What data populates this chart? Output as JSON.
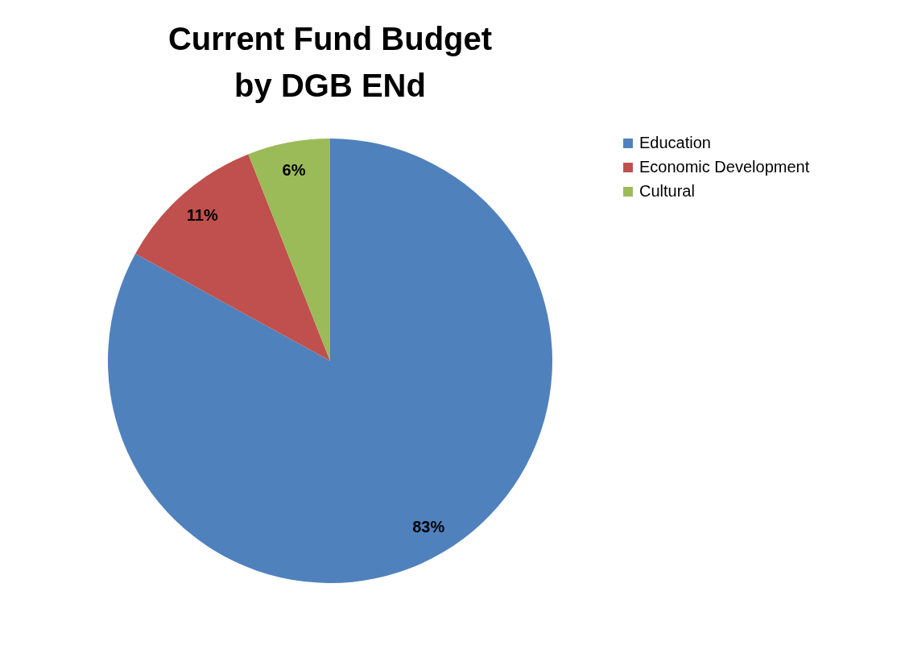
{
  "chart_data": {
    "type": "pie",
    "title": "Current Fund Budget\nby DGB ENd",
    "categories": [
      "Education",
      "Economic Development",
      "Cultural"
    ],
    "values": [
      83,
      11,
      6
    ],
    "colors": [
      "#4f81bd",
      "#c0504d",
      "#9bbb59"
    ],
    "value_labels": [
      "83%",
      "11%",
      "6%"
    ],
    "legend": "right"
  }
}
